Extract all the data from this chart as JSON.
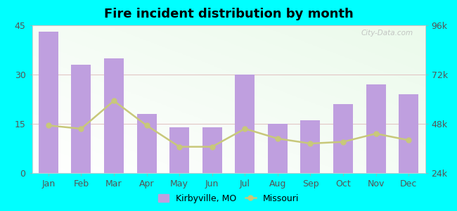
{
  "title": "Fire incident distribution by month",
  "months": [
    "Jan",
    "Feb",
    "Mar",
    "Apr",
    "May",
    "Jun",
    "Jul",
    "Aug",
    "Sep",
    "Oct",
    "Nov",
    "Dec"
  ],
  "kirbyville_values": [
    43,
    33,
    35,
    18,
    14,
    14,
    30,
    15,
    16,
    21,
    27,
    24
  ],
  "missouri_values": [
    14.5,
    13.5,
    22,
    14.5,
    8,
    8,
    13.5,
    10.5,
    9,
    9.5,
    12,
    10
  ],
  "bar_color": "#bf9fdf",
  "line_color": "#c8c87a",
  "background_color": "#00ffff",
  "ylim_left": [
    0,
    45
  ],
  "yticks_left": [
    0,
    15,
    30,
    45
  ],
  "ylim_right": [
    24000,
    96000
  ],
  "yticks_right": [
    24000,
    48000,
    72000,
    96000
  ],
  "ytick_labels_right": [
    "24k",
    "48k",
    "72k",
    "96k"
  ],
  "watermark": "City-Data.com",
  "legend_kirbyville": "Kirbyville, MO",
  "legend_missouri": "Missouri"
}
